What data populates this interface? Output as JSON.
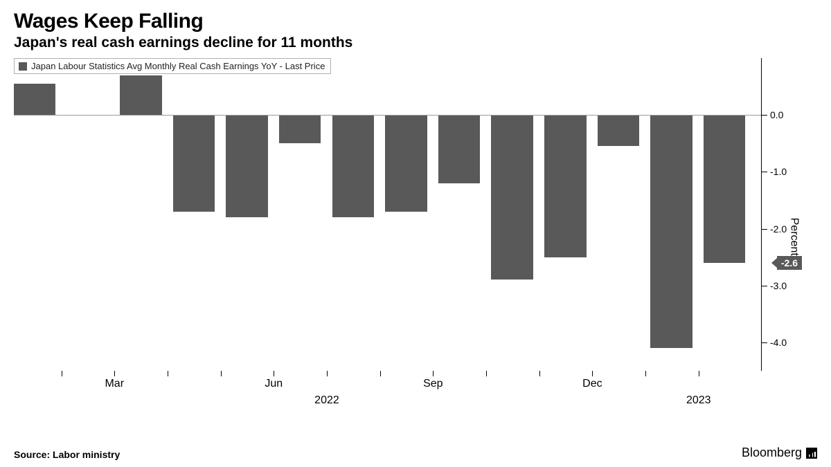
{
  "title": "Wages Keep Falling",
  "subtitle": "Japan's real cash earnings decline for 11 months",
  "legend_label": "Japan Labour Statistics Avg Monthly Real Cash Earnings YoY - Last Price",
  "source": "Source: Labor ministry",
  "brand": "Bloomberg",
  "chart": {
    "type": "bar",
    "bar_color": "#595959",
    "background_color": "#ffffff",
    "axis_color": "#000000",
    "zero_line_color": "#9a9a9a",
    "y_title": "Percent",
    "y_min": -4.5,
    "y_max": 1.0,
    "y_ticks": [
      0.0,
      -1.0,
      -2.0,
      -3.0,
      -4.0
    ],
    "y_tick_labels": [
      "0.0",
      "-1.0",
      "-2.0",
      "-3.0",
      "-4.0"
    ],
    "callout_value": -2.6,
    "callout_label": "-2.6",
    "bar_width_pct": 5.6,
    "gap_pct": 1.5,
    "values": [
      0.55,
      0.0,
      0.7,
      -1.7,
      -1.8,
      -0.5,
      -1.8,
      -1.7,
      -1.2,
      -2.9,
      -2.5,
      -0.55,
      -4.1,
      -2.6
    ],
    "x_month_ticks": [
      {
        "index_after": 1,
        "label": "Mar"
      },
      {
        "index_after": 4,
        "label": "Jun"
      },
      {
        "index_after": 7,
        "label": "Sep"
      },
      {
        "index_after": 10,
        "label": "Dec"
      }
    ],
    "x_minor_ticks_after": [
      0,
      1,
      2,
      3,
      4,
      5,
      6,
      7,
      8,
      9,
      10,
      11,
      12
    ],
    "x_year_labels": [
      {
        "center_index": 5.5,
        "label": "2022"
      },
      {
        "center_index": 12.5,
        "label": "2023"
      }
    ]
  }
}
